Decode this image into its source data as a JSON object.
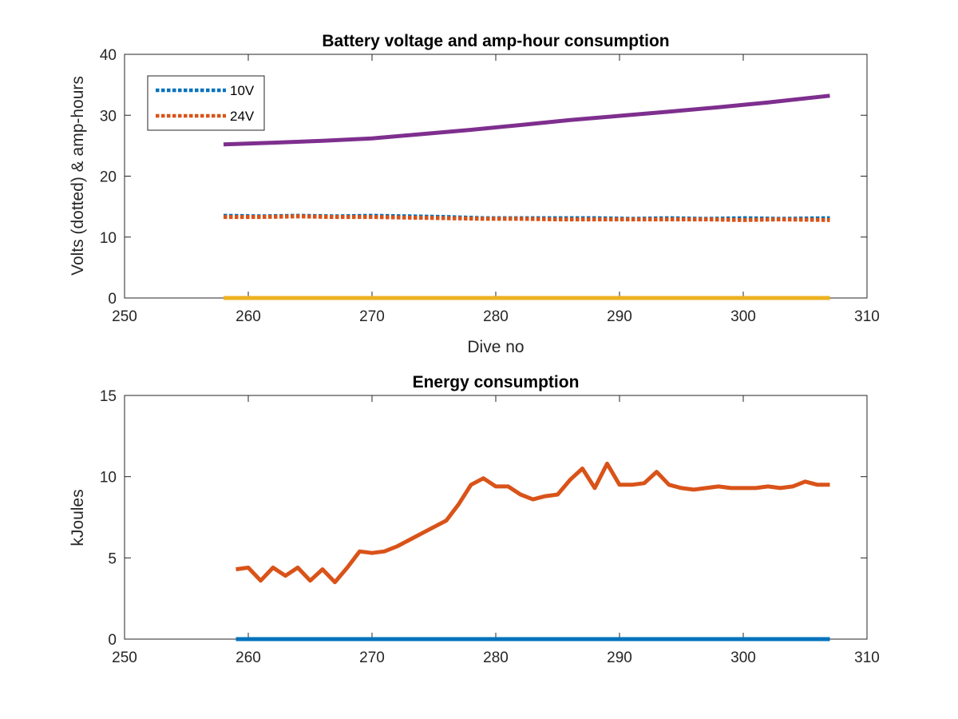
{
  "chart_data": [
    {
      "type": "line",
      "title": "Battery voltage and amp-hour consumption",
      "xlabel": "Dive no",
      "ylabel": "Volts (dotted) & amp-hours",
      "xlim": [
        250,
        310
      ],
      "ylim": [
        0,
        40
      ],
      "xticks": [
        250,
        260,
        270,
        280,
        290,
        300,
        310
      ],
      "yticks": [
        0,
        10,
        20,
        30,
        40
      ],
      "grid": false,
      "legend_position": "top-left",
      "series": [
        {
          "name": "10V",
          "style": "dotted",
          "color": "#0072BD",
          "x": [
            258,
            261,
            264,
            267,
            270,
            273,
            276,
            279,
            282,
            285,
            288,
            291,
            294,
            297,
            300,
            303,
            307
          ],
          "y": [
            13.5,
            13.4,
            13.5,
            13.4,
            13.5,
            13.4,
            13.3,
            13.1,
            13.1,
            13.1,
            13.1,
            13.0,
            13.1,
            13.0,
            13.1,
            13.0,
            13.1
          ]
        },
        {
          "name": "24V",
          "style": "dotted",
          "color": "#D95319",
          "x": [
            258,
            261,
            264,
            267,
            270,
            273,
            276,
            279,
            282,
            285,
            288,
            291,
            294,
            297,
            300,
            303,
            307
          ],
          "y": [
            13.3,
            13.3,
            13.4,
            13.3,
            13.3,
            13.2,
            13.1,
            13.0,
            13.0,
            12.9,
            12.9,
            12.9,
            12.9,
            12.9,
            12.8,
            12.9,
            12.8
          ]
        },
        {
          "style": "solid",
          "color": "#EDB120",
          "x": [
            258,
            307
          ],
          "y": [
            0,
            0
          ]
        },
        {
          "style": "solid",
          "color": "#7E2F8E",
          "x": [
            258,
            262,
            266,
            270,
            274,
            278,
            282,
            286,
            290,
            294,
            298,
            302,
            307
          ],
          "y": [
            25.2,
            25.5,
            25.8,
            26.2,
            26.9,
            27.6,
            28.4,
            29.2,
            29.9,
            30.6,
            31.3,
            32.1,
            33.2
          ]
        }
      ]
    },
    {
      "type": "line",
      "title": "Energy consumption",
      "xlabel": "",
      "ylabel": "kJoules",
      "xlim": [
        250,
        310
      ],
      "ylim": [
        0,
        15
      ],
      "xticks": [
        250,
        260,
        270,
        280,
        290,
        300,
        310
      ],
      "yticks": [
        0,
        5,
        10,
        15
      ],
      "grid": false,
      "series": [
        {
          "style": "solid",
          "color": "#0072BD",
          "x": [
            259,
            307
          ],
          "y": [
            0,
            0
          ]
        },
        {
          "style": "solid",
          "color": "#D95319",
          "x": [
            259,
            260,
            261,
            262,
            263,
            264,
            265,
            266,
            267,
            268,
            269,
            270,
            271,
            272,
            273,
            274,
            275,
            276,
            277,
            278,
            279,
            280,
            281,
            282,
            283,
            284,
            285,
            286,
            287,
            288,
            289,
            290,
            291,
            292,
            293,
            294,
            295,
            296,
            297,
            298,
            299,
            300,
            301,
            302,
            303,
            304,
            305,
            306,
            307
          ],
          "y": [
            4.3,
            4.4,
            3.6,
            4.4,
            3.9,
            4.4,
            3.6,
            4.3,
            3.5,
            4.4,
            5.4,
            5.3,
            5.4,
            5.7,
            6.1,
            6.5,
            6.9,
            7.3,
            8.3,
            9.5,
            9.9,
            9.4,
            9.4,
            8.9,
            8.6,
            8.8,
            8.9,
            9.8,
            10.5,
            9.3,
            10.8,
            9.5,
            9.5,
            9.6,
            10.3,
            9.5,
            9.3,
            9.2,
            9.3,
            9.4,
            9.3,
            9.3,
            9.3,
            9.4,
            9.3,
            9.4,
            9.7,
            9.5,
            9.5
          ]
        }
      ]
    }
  ]
}
